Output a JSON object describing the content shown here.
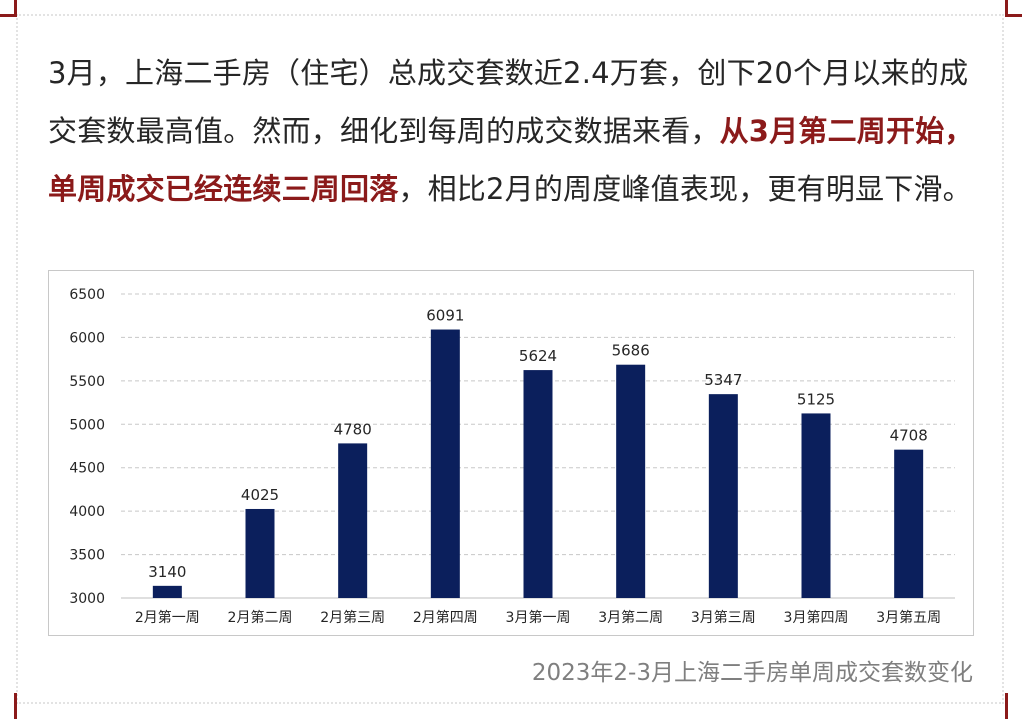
{
  "paragraph": {
    "part1": "3月，上海二手房（住宅）总成交套数近2.4万套，创下20个月以来的成交套数最高值。然而，细化到每周的成交数据来看，",
    "highlight": "从3月第二周开始，单周成交已经连续三周回落",
    "part2": "，相比2月的周度峰值表现，更有明显下滑。"
  },
  "colors": {
    "bar": "#0b1f5c",
    "highlight": "#8b1a1a",
    "grid": "#c8c8c8"
  },
  "chart_data": {
    "type": "bar",
    "title": "",
    "xlabel": "",
    "ylabel": "",
    "categories": [
      "2月第一周",
      "2月第二周",
      "2月第三周",
      "2月第四周",
      "3月第一周",
      "3月第二周",
      "3月第三周",
      "3月第四周",
      "3月第五周"
    ],
    "values": [
      3140,
      4025,
      4780,
      6091,
      5624,
      5686,
      5347,
      5125,
      4708
    ],
    "ylim": [
      3000,
      6500
    ],
    "yticks": [
      3000,
      3500,
      4000,
      4500,
      5000,
      5500,
      6000,
      6500
    ],
    "grid": true,
    "data_labels": true
  },
  "caption": "2023年2-3月上海二手房单周成交套数变化"
}
